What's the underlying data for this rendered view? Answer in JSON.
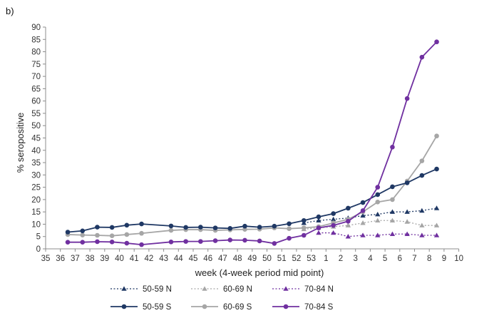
{
  "panel_label": "b)",
  "chart_data": {
    "type": "line",
    "xlabel": "week (4-week period mid point)",
    "ylabel": "% seropositive",
    "ylim": [
      0,
      90
    ],
    "yticks": [
      0,
      5,
      10,
      15,
      20,
      25,
      30,
      35,
      40,
      45,
      50,
      55,
      60,
      65,
      70,
      75,
      80,
      85,
      90
    ],
    "x_tick_labels": [
      "35",
      "36",
      "37",
      "38",
      "39",
      "40",
      "41",
      "42",
      "43",
      "44",
      "45",
      "46",
      "47",
      "48",
      "49",
      "50",
      "51",
      "52",
      "53",
      "1",
      "2",
      "3",
      "4",
      "5",
      "6",
      "7",
      "8",
      "9",
      "10"
    ],
    "x_positions": [
      36.5,
      37.5,
      38.5,
      39.5,
      40.5,
      41.5,
      43.5,
      44.5,
      45.5,
      46.5,
      47.5,
      48.5,
      49.5,
      50.5,
      51.5,
      52.5,
      53.5,
      54.5,
      55.5,
      56.5,
      57.5,
      58.5,
      59.5,
      60.5,
      61.5,
      62.5,
      63.5
    ],
    "grid": false,
    "legend_position": "bottom",
    "series": [
      {
        "name": "50-59 N",
        "color": "#1f3864",
        "dash": true,
        "marker": "triangle",
        "values": [
          null,
          null,
          null,
          null,
          null,
          null,
          null,
          null,
          null,
          null,
          null,
          null,
          null,
          null,
          null,
          10.5,
          11.5,
          12.0,
          12.5,
          13.5,
          14.0,
          15.0,
          15.0,
          15.5,
          16.5,
          null,
          null
        ]
      },
      {
        "name": "60-69 N",
        "color": "#a6a6a6",
        "dash": true,
        "marker": "triangle",
        "values": [
          null,
          null,
          null,
          null,
          null,
          null,
          null,
          null,
          null,
          null,
          null,
          null,
          null,
          null,
          null,
          8.0,
          8.5,
          9.0,
          9.5,
          10.5,
          11.5,
          11.5,
          11.0,
          9.5,
          9.5,
          null,
          null
        ]
      },
      {
        "name": "70-84 N",
        "color": "#7030a0",
        "dash": true,
        "marker": "triangle",
        "values": [
          null,
          null,
          null,
          null,
          null,
          null,
          null,
          null,
          null,
          null,
          null,
          null,
          null,
          null,
          null,
          null,
          6.5,
          6.5,
          5.0,
          5.5,
          5.5,
          6.0,
          6.0,
          5.5,
          5.5,
          null,
          null
        ]
      },
      {
        "name": "50-59 S",
        "color": "#1f3864",
        "dash": false,
        "marker": "circle",
        "values": [
          6.8,
          7.3,
          8.8,
          8.7,
          9.6,
          10.1,
          9.3,
          8.7,
          8.8,
          8.5,
          8.3,
          9.2,
          8.8,
          9.2,
          10.2,
          11.5,
          13.0,
          14.3,
          16.5,
          18.8,
          22.0,
          25.2,
          26.8,
          29.8,
          32.4,
          null,
          null
        ]
      },
      {
        "name": "60-69 S",
        "color": "#a6a6a6",
        "dash": false,
        "marker": "circle",
        "values": [
          5.8,
          5.6,
          5.5,
          5.3,
          5.8,
          6.3,
          7.5,
          7.8,
          7.8,
          7.5,
          7.7,
          7.9,
          8.0,
          8.5,
          8.2,
          8.5,
          9.0,
          10.5,
          12.0,
          15.0,
          19.0,
          20.0,
          27.5,
          35.7,
          45.8,
          null,
          null
        ]
      },
      {
        "name": "70-84 S",
        "color": "#7030a0",
        "dash": false,
        "marker": "circle",
        "values": [
          2.7,
          2.7,
          2.9,
          2.8,
          2.3,
          1.7,
          2.8,
          3.0,
          3.0,
          3.3,
          3.6,
          3.5,
          3.2,
          2.2,
          4.3,
          5.5,
          8.5,
          9.5,
          11.2,
          15.5,
          25.0,
          41.3,
          61.0,
          77.8,
          84.0,
          null,
          null
        ]
      }
    ]
  }
}
